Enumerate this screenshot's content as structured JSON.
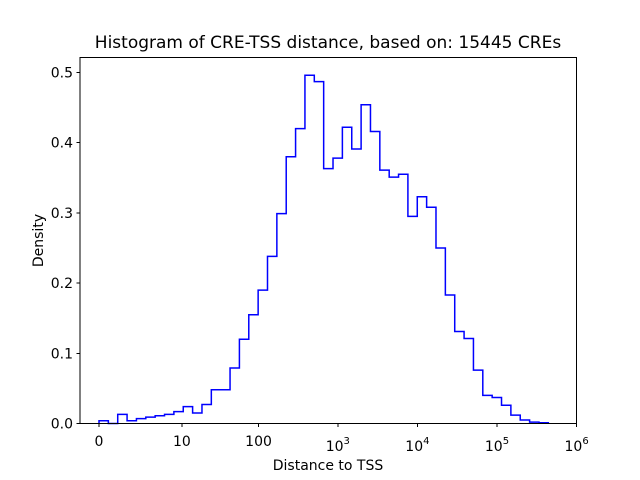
{
  "figure": {
    "title": "Histogram of CRE-TSS distance, based on: 15445 CREs",
    "xlabel": "Distance to TSS",
    "ylabel": "Density",
    "cre_count": "15445",
    "line_color": "#0000ff",
    "axis_color": "#000000",
    "background_color": "#ffffff"
  },
  "chart_data": {
    "type": "bar",
    "subtype": "step-histogram-density",
    "title": "Histogram of CRE-TSS distance, based on: 15445 CREs",
    "xlabel": "Distance to TSS",
    "ylabel": "Density",
    "x_scale": "symlog (plotted as log10(distance+1))",
    "xlim_labels": [
      "0",
      "1000000"
    ],
    "ylim": [
      0,
      0.521
    ],
    "grid": false,
    "legend": "none",
    "x_ticks": [
      {
        "label": "0",
        "value": 0,
        "exponent": null
      },
      {
        "label": "10",
        "value": 10,
        "exponent": null
      },
      {
        "label": "100",
        "value": 100,
        "exponent": null
      },
      {
        "label": "10",
        "value": 1000,
        "exponent": "3"
      },
      {
        "label": "10",
        "value": 10000,
        "exponent": "4"
      },
      {
        "label": "10",
        "value": 100000,
        "exponent": "5"
      },
      {
        "label": "10",
        "value": 1000000,
        "exponent": "6"
      }
    ],
    "y_ticks": [
      {
        "label": "0.0",
        "value": 0.0
      },
      {
        "label": "0.1",
        "value": 0.1
      },
      {
        "label": "0.2",
        "value": 0.2
      },
      {
        "label": "0.3",
        "value": 0.3
      },
      {
        "label": "0.4",
        "value": 0.4
      },
      {
        "label": "0.5",
        "value": 0.5
      }
    ],
    "bins": {
      "transform": "log10(distance+1)",
      "start_log10": 0.0,
      "width_log10": 0.1176,
      "count": 48,
      "densities": [
        0.004,
        0.0,
        0.013,
        0.004,
        0.007,
        0.009,
        0.011,
        0.013,
        0.017,
        0.024,
        0.015,
        0.027,
        0.048,
        0.048,
        0.079,
        0.12,
        0.155,
        0.19,
        0.238,
        0.299,
        0.38,
        0.42,
        0.496,
        0.487,
        0.363,
        0.378,
        0.422,
        0.391,
        0.454,
        0.416,
        0.361,
        0.351,
        0.355,
        0.295,
        0.323,
        0.308,
        0.25,
        0.183,
        0.131,
        0.121,
        0.076,
        0.04,
        0.037,
        0.026,
        0.012,
        0.005,
        0.002,
        0.001
      ]
    }
  }
}
